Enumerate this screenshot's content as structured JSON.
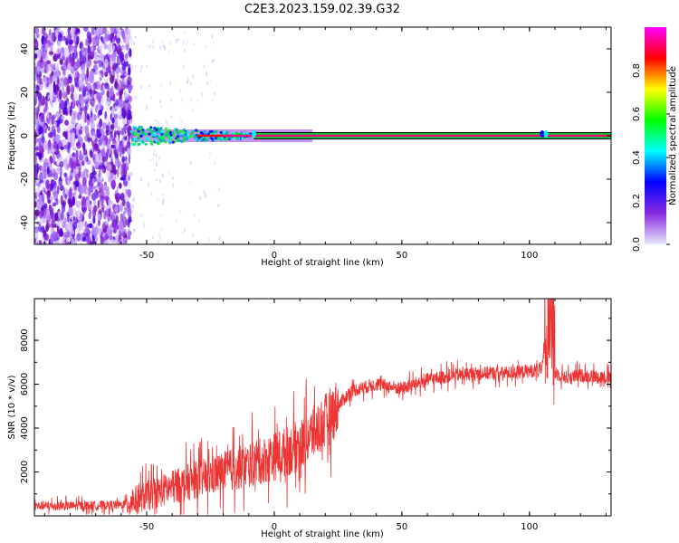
{
  "title": "C2E3.2023.159.02.39.G32",
  "chart_data": [
    {
      "type": "heatmap",
      "title": "",
      "xlabel": "Height of straight line (km)",
      "ylabel": "Frequency (Hz)",
      "xlim": [
        -94,
        132
      ],
      "ylim": [
        -50,
        50
      ],
      "xticks": [
        "-50",
        "0",
        "50",
        "100"
      ],
      "yticks": [
        "40",
        "20",
        "0",
        "-20",
        "-40"
      ],
      "grid": false,
      "signal_frequency_hz": 0,
      "noise_region_upper_km": -56,
      "colorbar": {
        "label": "Normalized spectral amplitude",
        "range": [
          0,
          1
        ],
        "ticks": [
          "0.0",
          "0.2",
          "0.4",
          "0.6",
          "0.8"
        ],
        "colors": [
          "#e6e6fa",
          "#8a2be2",
          "#0000ff",
          "#00ffff",
          "#00ff00",
          "#ffff00",
          "#ff0000",
          "#ff00ff"
        ]
      }
    },
    {
      "type": "line",
      "title": "",
      "xlabel": "Height of straight line (km)",
      "ylabel": "SNR (10 * v/v)",
      "xlim": [
        -94,
        132
      ],
      "ylim": [
        0,
        9900
      ],
      "xticks": [
        "-50",
        "0",
        "50",
        "100"
      ],
      "yticks": [
        "2000",
        "4000",
        "6000",
        "8000"
      ],
      "grid": false,
      "line_color": "#ee3333",
      "series": [
        {
          "x": [
            -94,
            -80,
            -60,
            -55,
            -50,
            -45,
            -40,
            -30,
            -20,
            -10,
            0,
            10,
            20,
            25,
            30,
            40,
            50,
            60,
            70,
            80,
            90,
            100,
            105,
            108,
            110,
            115,
            120,
            132
          ],
          "values": [
            450,
            450,
            500,
            700,
            900,
            1100,
            1300,
            1650,
            2000,
            2300,
            2700,
            3200,
            4300,
            5000,
            5700,
            6000,
            5800,
            6200,
            6400,
            6500,
            6500,
            6600,
            6700,
            9800,
            6500,
            6300,
            6400,
            6300
          ]
        }
      ]
    }
  ]
}
